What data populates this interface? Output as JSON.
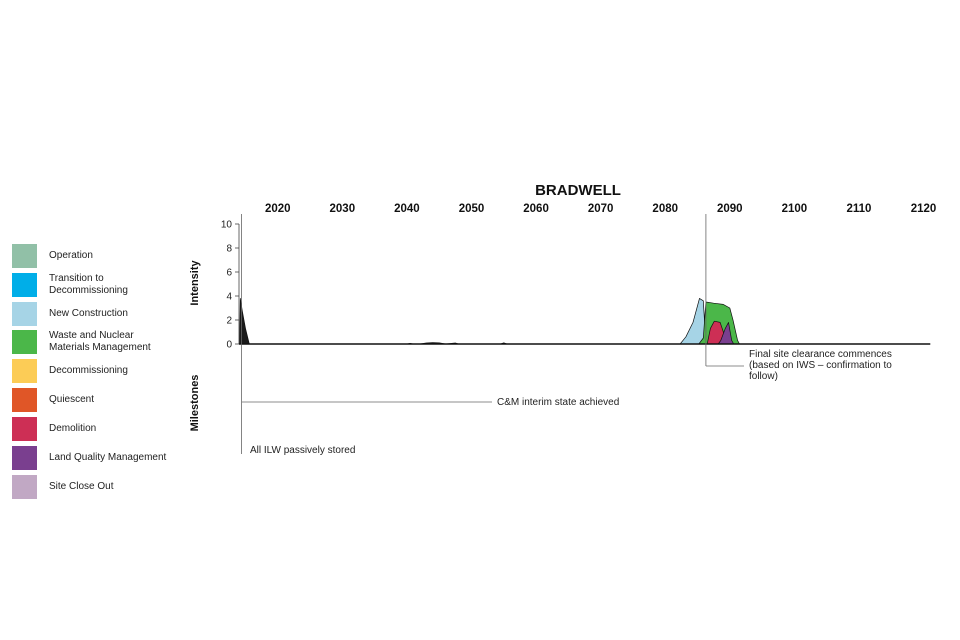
{
  "chart_data": {
    "type": "area",
    "title": "BRADWELL",
    "ylabel": "Intensity",
    "milestones_label": "Milestones",
    "x_ticks": [
      2020,
      2030,
      2040,
      2050,
      2060,
      2070,
      2080,
      2090,
      2100,
      2110,
      2120
    ],
    "xlim": [
      2014,
      2121
    ],
    "y_ticks": [
      0,
      2,
      4,
      6,
      8,
      10
    ],
    "ylim": [
      0,
      10
    ],
    "series": [
      {
        "key": "new_construction",
        "color": "#a6d4e6",
        "points": [
          [
            2014.2,
            0
          ],
          [
            2014.4,
            1.2
          ],
          [
            2014.8,
            0.4
          ],
          [
            2015.5,
            0
          ],
          [
            2082.3,
            0
          ],
          [
            2083.2,
            0.6
          ],
          [
            2084.3,
            1.8
          ],
          [
            2085.3,
            3.8
          ],
          [
            2085.9,
            3.6
          ],
          [
            2086.3,
            0
          ],
          [
            2121,
            0
          ]
        ]
      },
      {
        "key": "waste_and_nuclear",
        "color": "#4bb749",
        "points": [
          [
            2014.2,
            0
          ],
          [
            2014.4,
            0.8
          ],
          [
            2014.8,
            0.5
          ],
          [
            2015.5,
            0
          ],
          [
            2085.2,
            0
          ],
          [
            2085.9,
            0.5
          ],
          [
            2086.3,
            3.5
          ],
          [
            2087.5,
            3.4
          ],
          [
            2089.0,
            3.3
          ],
          [
            2090.0,
            3.0
          ],
          [
            2090.5,
            2.0
          ],
          [
            2091.2,
            0.3
          ],
          [
            2091.5,
            0
          ],
          [
            2121,
            0
          ]
        ]
      },
      {
        "key": "demolition",
        "color": "#cd2f55",
        "points": [
          [
            2014.2,
            0
          ],
          [
            2086.5,
            0
          ],
          [
            2087.0,
            1.3
          ],
          [
            2087.6,
            1.9
          ],
          [
            2088.5,
            1.8
          ],
          [
            2089.2,
            0.7
          ],
          [
            2089.6,
            0
          ],
          [
            2121,
            0
          ]
        ]
      },
      {
        "key": "land_quality",
        "color": "#7a3f8f",
        "points": [
          [
            2014.2,
            0
          ],
          [
            2088.2,
            0
          ],
          [
            2088.6,
            0.3
          ],
          [
            2089.3,
            1.3
          ],
          [
            2089.8,
            1.8
          ],
          [
            2090.3,
            0.3
          ],
          [
            2090.6,
            0
          ],
          [
            2121,
            0
          ]
        ]
      },
      {
        "key": "other",
        "color": "#1a1a1a",
        "points": [
          [
            2014.1,
            0
          ],
          [
            2014.2,
            3.8
          ],
          [
            2014.5,
            2.8
          ],
          [
            2015.0,
            1.3
          ],
          [
            2015.6,
            0
          ],
          [
            2040.0,
            0
          ],
          [
            2040.5,
            0.06
          ],
          [
            2041.0,
            0
          ],
          [
            2042.0,
            0
          ],
          [
            2043.0,
            0.08
          ],
          [
            2044.0,
            0.12
          ],
          [
            2045.0,
            0.1
          ],
          [
            2046.0,
            0
          ],
          [
            2047.5,
            0.08
          ],
          [
            2048.0,
            0
          ],
          [
            2054.5,
            0
          ],
          [
            2055.0,
            0.1
          ],
          [
            2055.5,
            0
          ],
          [
            2121,
            0
          ]
        ]
      }
    ],
    "milestones": [
      {
        "year": 2014.4,
        "label": "All ILW passively stored"
      },
      {
        "year": 2014.4,
        "label": "C&M interim state achieved"
      },
      {
        "year": 2086.3,
        "label": "Final site clearance commences\n(based on IWS – confirmation to\nfollow)"
      }
    ],
    "legend": [
      {
        "label": "Operation",
        "color": "#91c0a7"
      },
      {
        "label": "Transition to\nDecommissioning",
        "color": "#00aee8"
      },
      {
        "label": "New Construction",
        "color": "#a6d4e6"
      },
      {
        "label": "Waste and Nuclear\nMaterials Management",
        "color": "#4bb749"
      },
      {
        "label": "Decommissioning",
        "color": "#fccc56"
      },
      {
        "label": "Quiescent",
        "color": "#e05627"
      },
      {
        "label": "Demolition",
        "color": "#cd2f55"
      },
      {
        "label": "Land Quality Management",
        "color": "#7a3f8f"
      },
      {
        "label": "Site Close Out",
        "color": "#c1a8c4"
      }
    ]
  }
}
